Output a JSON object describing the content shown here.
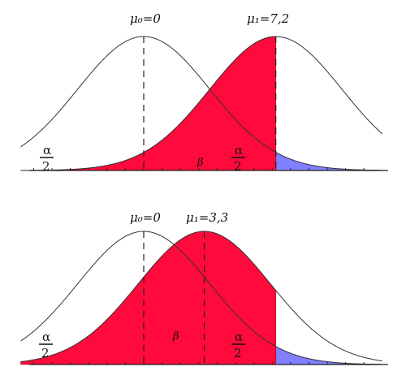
{
  "panels": [
    {
      "id": "top",
      "mu0_label": "μ₀=0",
      "mu1_label": "μ₁=7,2",
      "mu0": 0,
      "mu1": 7.2,
      "beta_label": "β",
      "alpha_num": "α",
      "alpha_den": "2"
    },
    {
      "id": "bottom",
      "mu0_label": "μ₀=0",
      "mu1_label": "μ₁=3,3",
      "mu0": 0,
      "mu1": 3.3,
      "beta_label": "β",
      "alpha_num": "α",
      "alpha_den": "2"
    }
  ],
  "colors": {
    "alpha_region": "#7f7fff",
    "beta_region": "#ff0a3c"
  },
  "critical_value": 7.2
}
